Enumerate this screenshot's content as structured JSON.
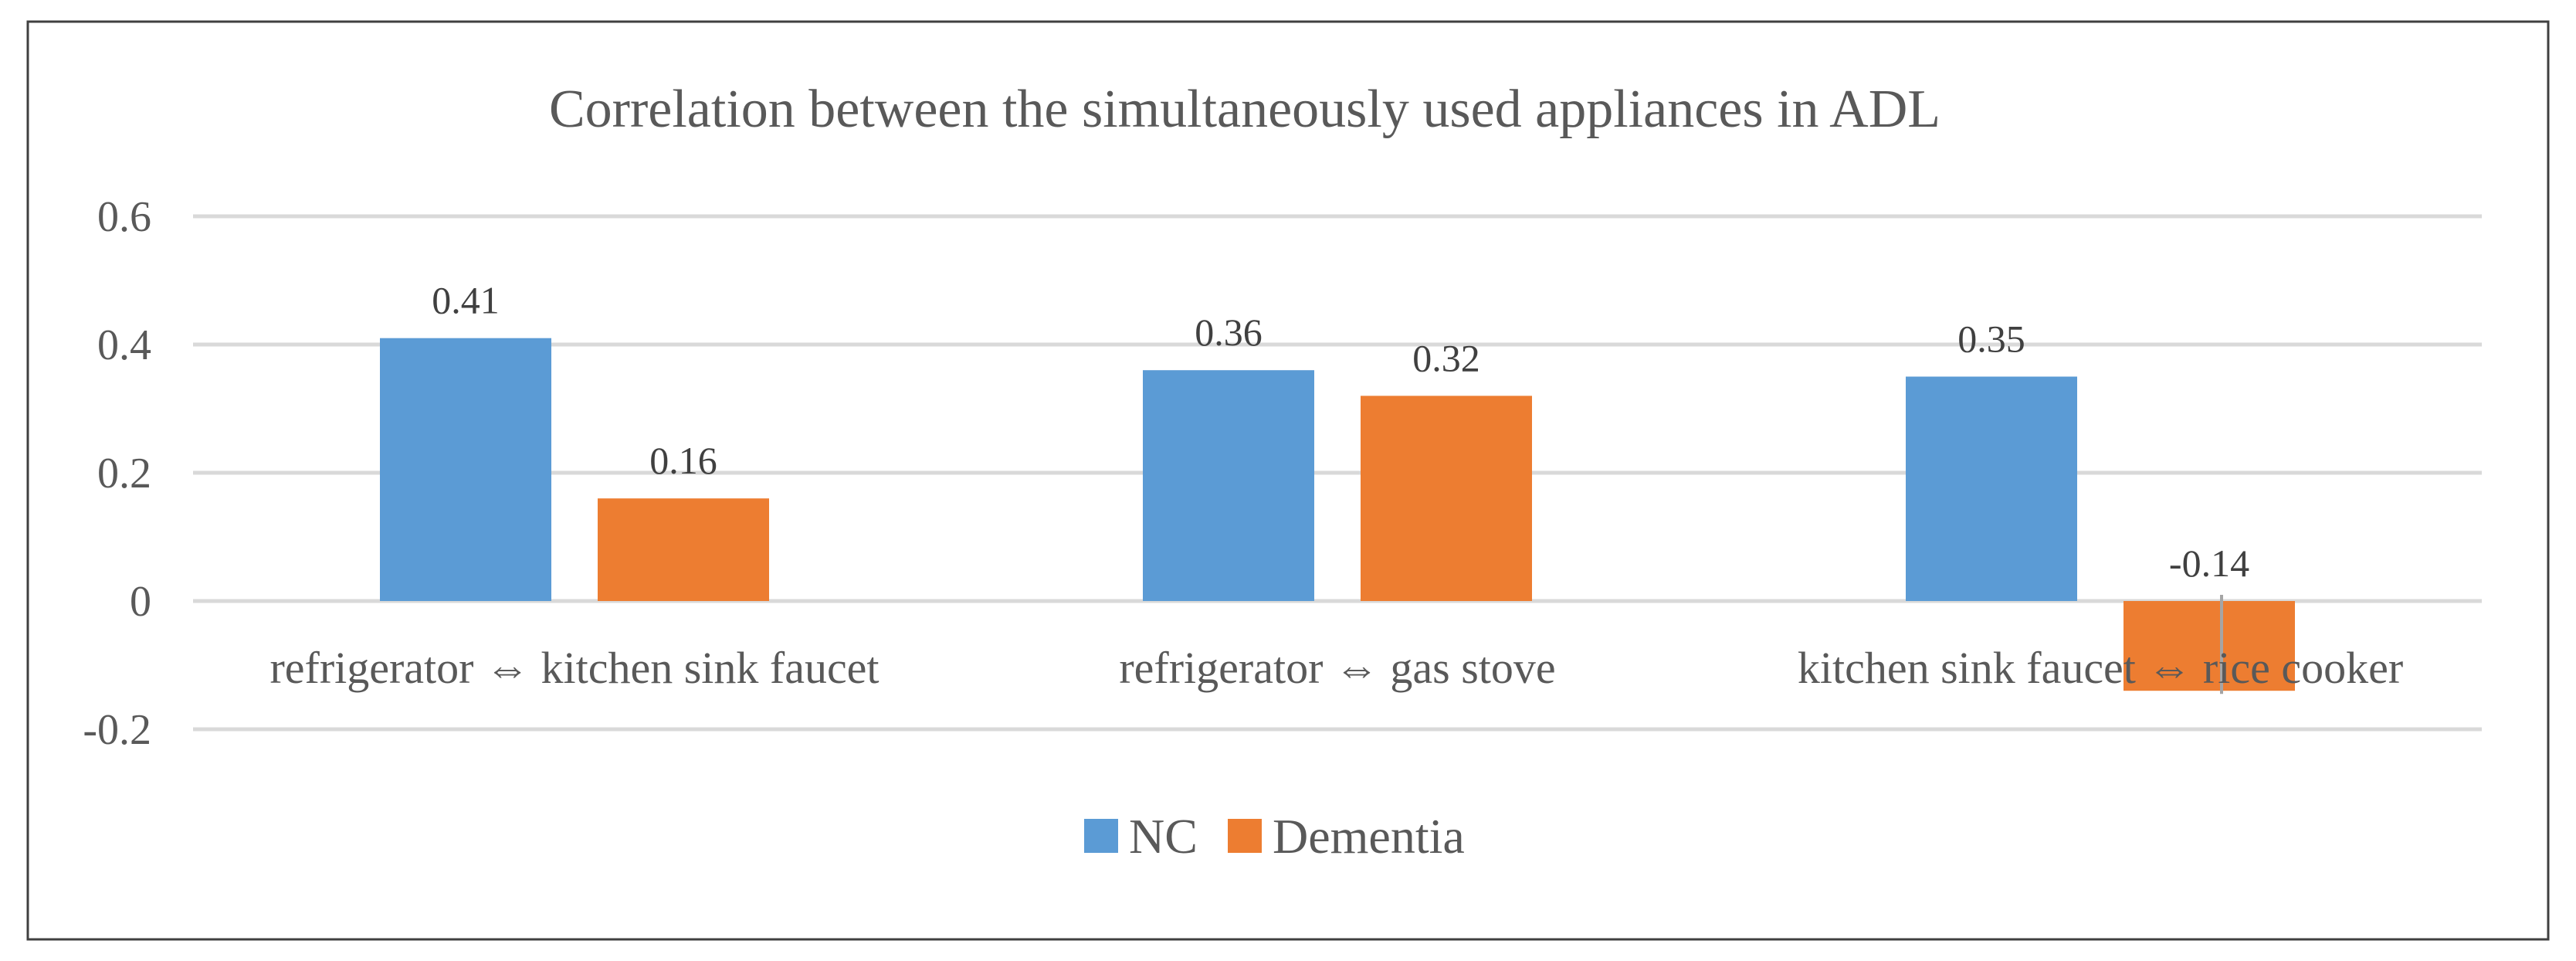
{
  "chart_data": {
    "type": "bar",
    "title": "Correlation between the simultaneously used appliances in ADL",
    "xlabel": "",
    "ylabel": "",
    "categories": [
      "refrigerator ⇔ kitchen sink faucet",
      "refrigerator ⇔ gas stove",
      "kitchen sink faucet ⇔ rice cooker"
    ],
    "series": [
      {
        "name": "NC",
        "color": "#5b9bd5",
        "values": [
          0.41,
          0.36,
          0.35
        ],
        "labels": [
          "0.41",
          "0.36",
          "0.35"
        ]
      },
      {
        "name": "Dementia",
        "color": "#ed7d31",
        "values": [
          0.16,
          0.32,
          -0.14
        ],
        "labels": [
          "0.16",
          "0.32",
          "-0.14"
        ]
      }
    ],
    "ylim": [
      -0.2,
      0.6
    ],
    "yticks": [
      -0.2,
      0,
      0.2,
      0.4,
      0.6
    ],
    "ytick_labels": [
      "-0.2",
      "0",
      "0.2",
      "0.4",
      "0.6"
    ],
    "grid": true,
    "legend_position": "bottom"
  }
}
